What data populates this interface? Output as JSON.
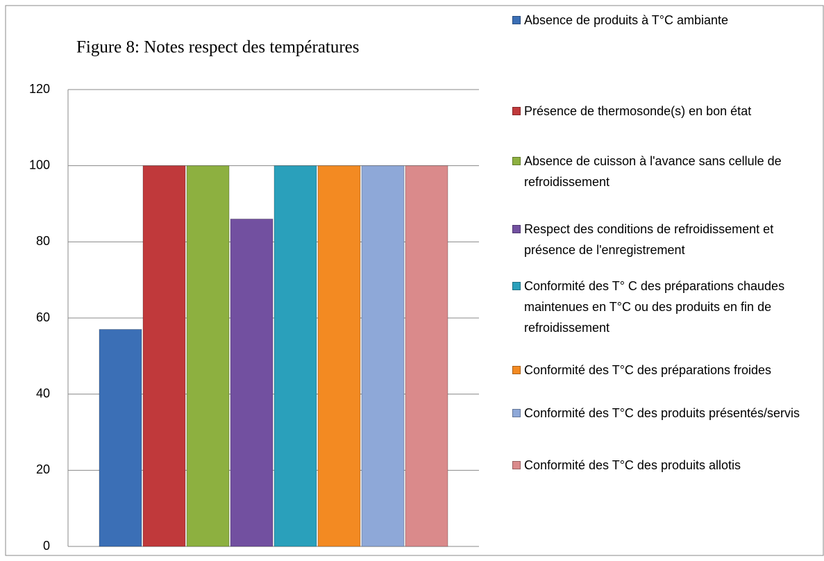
{
  "chart_data": {
    "type": "bar",
    "title": "Figure 8: Notes respect des températures",
    "series": [
      {
        "name": "Absence de produits à T°C ambiante",
        "color": "#3b6fb6",
        "values": [
          57
        ]
      },
      {
        "name": "Présence de thermosonde(s) en bon état",
        "color": "#c0393b",
        "values": [
          100
        ]
      },
      {
        "name": "Absence de cuisson à l'avance sans cellule de refroidissement",
        "color": "#8db040",
        "values": [
          100
        ]
      },
      {
        "name": "Respect des conditions de refroidissement et présence de l'enregistrement",
        "color": "#7250a0",
        "values": [
          86
        ]
      },
      {
        "name": "Conformité des T° C des préparations chaudes maintenues en T°C ou des produits en fin de refroidissement",
        "color": "#2aa0bb",
        "values": [
          100
        ]
      },
      {
        "name": "Conformité des T°C des préparations froides",
        "color": "#f38a22",
        "values": [
          100
        ]
      },
      {
        "name": "Conformité des T°C des produits présentés/servis",
        "color": "#8ea8d8",
        "values": [
          100
        ]
      },
      {
        "name": "Conformité des T°C des produits allotis",
        "color": "#da8a8b",
        "values": [
          100
        ]
      }
    ],
    "ylim": [
      0,
      120
    ],
    "yticks": [
      0,
      20,
      40,
      60,
      80,
      100,
      120
    ],
    "grid": true,
    "legend": "right"
  }
}
